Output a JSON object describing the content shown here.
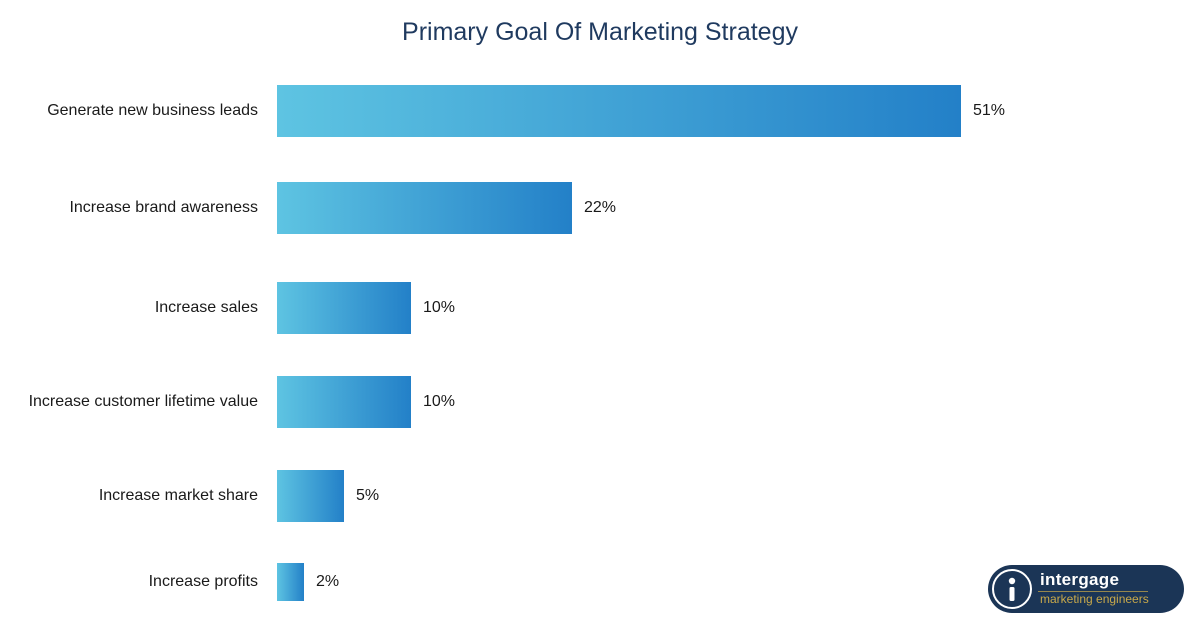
{
  "chart_data": {
    "type": "bar",
    "orientation": "horizontal",
    "title": "Primary Goal Of Marketing Strategy",
    "categories": [
      "Generate new business leads",
      "Increase brand awareness",
      "Increase sales",
      "Increase customer lifetime value",
      "Increase market share",
      "Increase profits"
    ],
    "values": [
      51,
      22,
      10,
      10,
      5,
      2
    ],
    "value_labels": [
      "51%",
      "22%",
      "10%",
      "10%",
      "5%",
      "2%"
    ],
    "unit": "%",
    "xlim": [
      0,
      51
    ],
    "grid": false,
    "legend": "none",
    "colors": {
      "bar_start": "#5ec4e2",
      "bar_end": "#2380c8",
      "title": "#1f3a5f"
    }
  },
  "logo": {
    "name": "intergage",
    "tagline": "marketing engineers",
    "icon": "info-i-icon",
    "colors": {
      "background": "#1b3556",
      "tagline": "#c9a94a"
    }
  }
}
